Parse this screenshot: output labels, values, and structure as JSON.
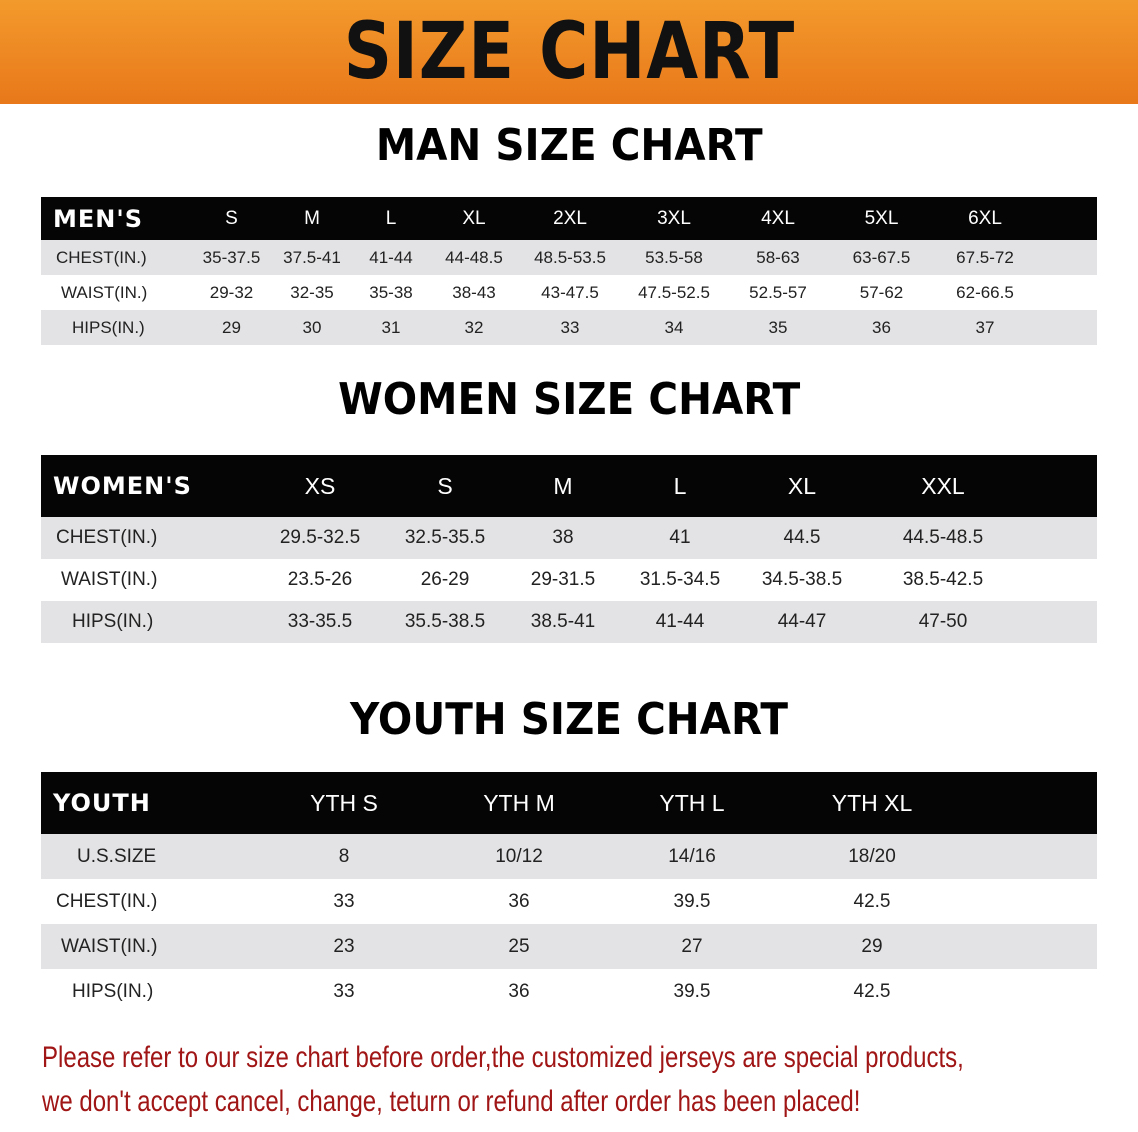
{
  "banner": {
    "title": "SIZE CHART",
    "color": "#ef8a22"
  },
  "men": {
    "title": "MAN SIZE CHART",
    "header": [
      "MEN'S",
      "S",
      "M",
      "L",
      "XL",
      "2XL",
      "3XL",
      "4XL",
      "5XL",
      "6XL"
    ],
    "rows": [
      [
        "CHEST(IN.)",
        "35-37.5",
        "37.5-41",
        "41-44",
        "44-48.5",
        "48.5-53.5",
        "53.5-58",
        "58-63",
        "63-67.5",
        "67.5-72"
      ],
      [
        "WAIST(IN.)",
        "29-32",
        "32-35",
        "35-38",
        "38-43",
        "43-47.5",
        "47.5-52.5",
        "52.5-57",
        "57-62",
        "62-66.5"
      ],
      [
        "HIPS(IN.)",
        "29",
        "30",
        "31",
        "32",
        "33",
        "34",
        "35",
        "36",
        "37"
      ]
    ]
  },
  "women": {
    "title": "WOMEN SIZE CHART",
    "header": [
      "WOMEN'S",
      "XS",
      "S",
      "M",
      "L",
      "XL",
      "XXL"
    ],
    "rows": [
      [
        "CHEST(IN.)",
        "29.5-32.5",
        "32.5-35.5",
        "38",
        "41",
        "44.5",
        "44.5-48.5"
      ],
      [
        "WAIST(IN.)",
        "23.5-26",
        "26-29",
        "29-31.5",
        "31.5-34.5",
        "34.5-38.5",
        "38.5-42.5"
      ],
      [
        "HIPS(IN.)",
        "33-35.5",
        "35.5-38.5",
        "38.5-41",
        "41-44",
        "44-47",
        "47-50"
      ]
    ]
  },
  "youth": {
    "title": "YOUTH SIZE CHART",
    "header": [
      "YOUTH",
      "YTH S",
      "YTH M",
      "YTH L",
      "YTH XL"
    ],
    "rows": [
      [
        "U.S.SIZE",
        "8",
        "10/12",
        "14/16",
        "18/20"
      ],
      [
        "CHEST(IN.)",
        "33",
        "36",
        "39.5",
        "42.5"
      ],
      [
        "WAIST(IN.)",
        "23",
        "25",
        "27",
        "29"
      ],
      [
        "HIPS(IN.)",
        "33",
        "36",
        "39.5",
        "42.5"
      ]
    ]
  },
  "notice": {
    "line1": "Please refer to our size chart before order,the customized jerseys are special products,",
    "line2": "we don't accept cancel, change, teturn or refund after order has been placed!",
    "color": "#a01515"
  }
}
